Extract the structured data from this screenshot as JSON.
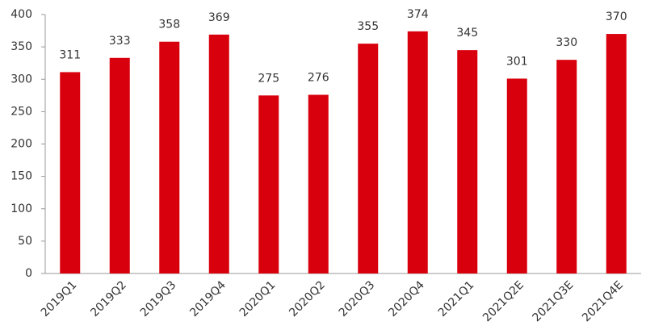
{
  "chart_data": {
    "type": "bar",
    "categories": [
      "2019Q1",
      "2019Q2",
      "2019Q3",
      "2019Q4",
      "2020Q1",
      "2020Q2",
      "2020Q3",
      "2020Q4",
      "2021Q1",
      "2021Q2E",
      "2021Q3E",
      "2021Q4E"
    ],
    "values": [
      311,
      333,
      358,
      369,
      275,
      276,
      355,
      374,
      345,
      301,
      330,
      370
    ],
    "color": "#d9000d",
    "ylim": [
      0,
      400
    ],
    "yticks": [
      0,
      50,
      100,
      150,
      200,
      250,
      300,
      350,
      400
    ],
    "grid": false
  }
}
